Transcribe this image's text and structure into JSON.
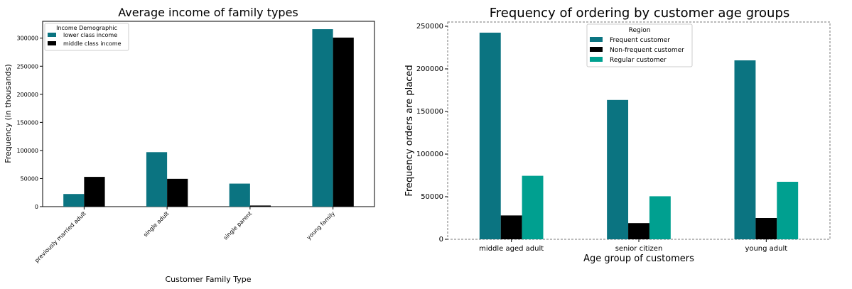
{
  "chart_data": [
    {
      "type": "bar",
      "title": "Average income of family types",
      "xlabel": "Customer Family Type",
      "ylabel": "Frequency (in thousands)",
      "categories": [
        "previously married adult",
        "single adult",
        "single parent",
        "young family"
      ],
      "series": [
        {
          "name": "lower class income",
          "color": "#0b7481",
          "values": [
            22500,
            97000,
            41000,
            316000
          ]
        },
        {
          "name": "middle class income",
          "color": "#000000",
          "values": [
            53000,
            49500,
            2000,
            301000
          ]
        }
      ],
      "ylim": [
        0,
        330000
      ],
      "yticks": [
        0,
        50000,
        100000,
        150000,
        200000,
        250000,
        300000
      ],
      "legend": {
        "title": "Income Demographic",
        "placement": "top-left"
      },
      "grid": false
    },
    {
      "type": "bar",
      "title": "Frequency of ordering by customer age groups",
      "xlabel": "Age group of customers",
      "ylabel": "Frequency orders are placed",
      "categories": [
        "middle aged adult",
        "senior citizen",
        "young adult"
      ],
      "series": [
        {
          "name": "Frequent customer",
          "color": "#0b7481",
          "values": [
            242500,
            163500,
            210000
          ]
        },
        {
          "name": "Non-frequent customer",
          "color": "#000000",
          "values": [
            28000,
            19000,
            25000
          ]
        },
        {
          "name": "Regular customer",
          "color": "#00a090",
          "values": [
            74500,
            50500,
            67500
          ]
        }
      ],
      "ylim": [
        0,
        255000
      ],
      "yticks": [
        0,
        50000,
        100000,
        150000,
        200000,
        250000
      ],
      "legend": {
        "title": "Region",
        "placement": "top-center"
      },
      "grid": false
    }
  ]
}
